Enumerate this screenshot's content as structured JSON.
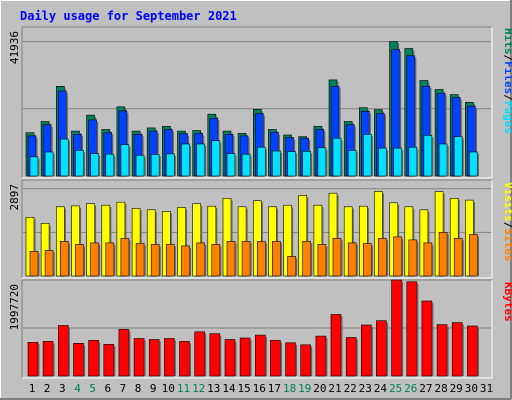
{
  "chart_data": {
    "type": "bar",
    "title": "Daily usage for September 2021",
    "categories": [
      "1",
      "2",
      "3",
      "4",
      "5",
      "6",
      "7",
      "8",
      "9",
      "10",
      "11",
      "12",
      "13",
      "14",
      "15",
      "16",
      "17",
      "18",
      "19",
      "20",
      "21",
      "22",
      "23",
      "24",
      "25",
      "26",
      "27",
      "28",
      "29",
      "30",
      "31"
    ],
    "weekend_categories": [
      "4",
      "5",
      "11",
      "12",
      "18",
      "19",
      "25",
      "26"
    ],
    "panels": [
      {
        "id": "hits",
        "max_label": "41936",
        "ymax": 41936,
        "series": [
          {
            "name": "Hits",
            "color": "#00805c",
            "values": [
              13500,
              17000,
              28000,
              14000,
              19000,
              14500,
              21600,
              14000,
              15000,
              15500,
              14000,
              14200,
              19300,
              14000,
              13300,
              20800,
              14500,
              12800,
              12300,
              15500,
              30000,
              17000,
              21300,
              20700,
              41936,
              39800,
              29800,
              27000,
              25400,
              23000
            ]
          },
          {
            "name": "Files",
            "color": "#0042ff",
            "values": [
              12500,
              16000,
              26500,
              13000,
              17500,
              13500,
              20300,
              13000,
              14000,
              14500,
              13200,
              13300,
              18000,
              13000,
              12500,
              19500,
              13600,
              12000,
              11800,
              14500,
              28000,
              16000,
              20200,
              19500,
              39500,
              37500,
              28000,
              25800,
              24500,
              21800
            ]
          },
          {
            "name": "Pages",
            "color": "#00e0ff",
            "values": [
              6000,
              7500,
              11500,
              8000,
              7000,
              6800,
              9800,
              6500,
              6700,
              6900,
              10000,
              10000,
              11000,
              7000,
              6800,
              9000,
              7800,
              7600,
              7700,
              8800,
              11800,
              8000,
              13000,
              8700,
              8700,
              9000,
              12700,
              10000,
              12300,
              7500
            ]
          }
        ]
      },
      {
        "id": "visits",
        "max_label": "2897",
        "ymax": 2897,
        "series": [
          {
            "name": "Visits",
            "color": "#ffff00",
            "values": [
              1950,
              1750,
              2300,
              2330,
              2400,
              2350,
              2450,
              2250,
              2200,
              2150,
              2280,
              2400,
              2320,
              2580,
              2300,
              2500,
              2300,
              2350,
              2680,
              2350,
              2750,
              2300,
              2320,
              2810,
              2430,
              2300,
              2200,
              2800,
              2580,
              2520
            ]
          },
          {
            "name": "Sites",
            "color": "#ff8000",
            "values": [
              820,
              850,
              1150,
              1050,
              1100,
              1100,
              1250,
              1080,
              1050,
              1050,
              1000,
              1100,
              1050,
              1150,
              1150,
              1150,
              1150,
              650,
              1150,
              1050,
              1250,
              1100,
              1080,
              1250,
              1300,
              1200,
              1100,
              1450,
              1250,
              1380
            ]
          }
        ]
      },
      {
        "id": "kbytes",
        "max_label": "1997720",
        "ymax": 1997720,
        "series": [
          {
            "name": "KBytes",
            "color": "#ff0000",
            "values": [
              700000,
              720000,
              1050000,
              680000,
              740000,
              660000,
              970000,
              780000,
              760000,
              780000,
              720000,
              920000,
              880000,
              760000,
              790000,
              850000,
              740000,
              690000,
              650000,
              830000,
              1280000,
              800000,
              1060000,
              1150000,
              1997720,
              1960000,
              1560000,
              1070000,
              1110000,
              1040000
            ]
          }
        ]
      }
    ],
    "axis_labels": {
      "hits": [
        "Pages",
        "Files",
        "Hits"
      ],
      "visits": [
        "Sites",
        "Visits"
      ],
      "kbytes": [
        "KBytes"
      ]
    }
  }
}
